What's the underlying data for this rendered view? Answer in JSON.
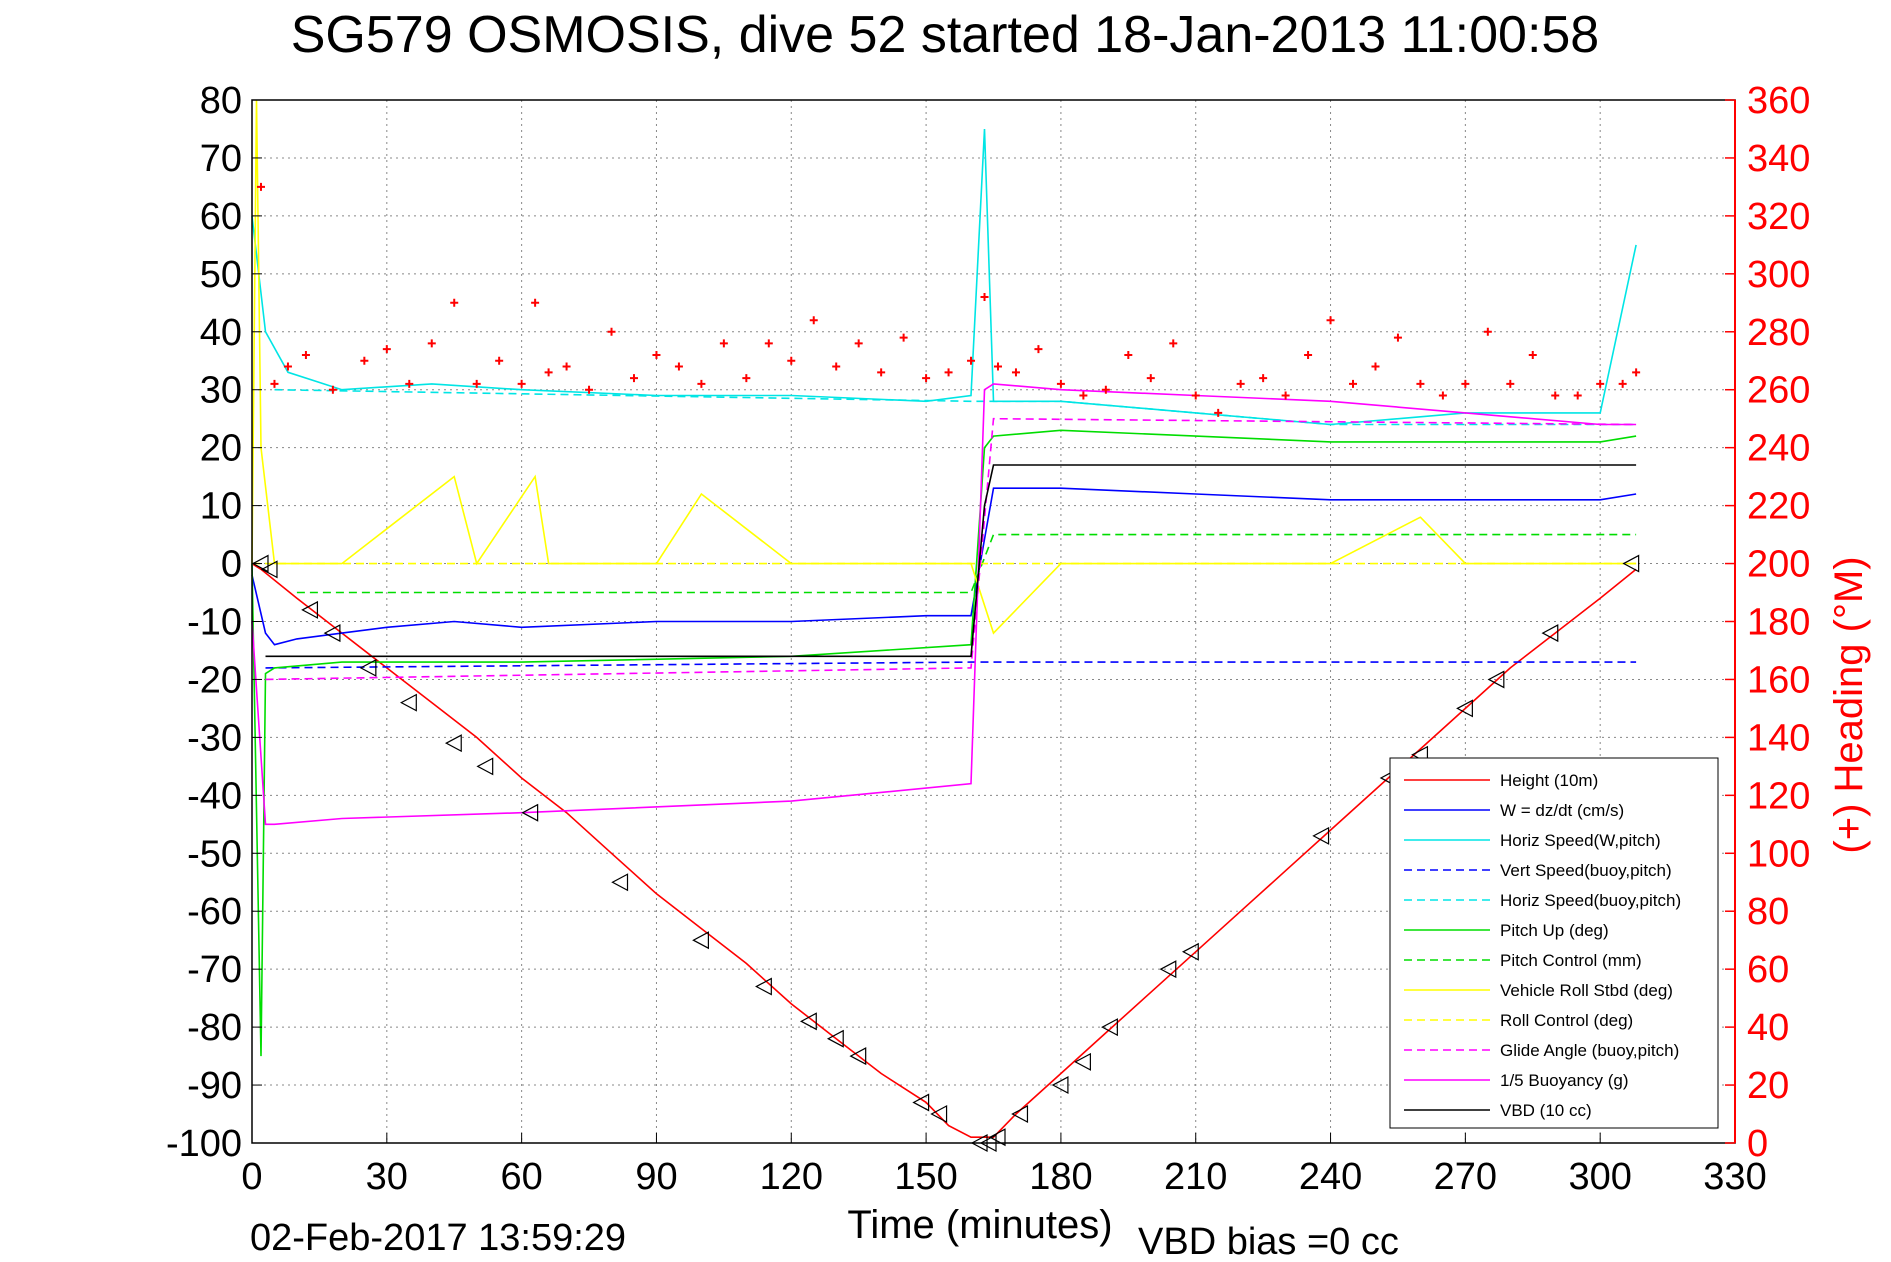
{
  "chart_data": {
    "type": "line",
    "title": "SG579 OSMOSIS, dive 52 started 18-Jan-2013 11:00:58",
    "xlabel": "Time (minutes)",
    "ylabel": "",
    "ylabel_right": "(+) Heading (°M)",
    "xlim": [
      0,
      330
    ],
    "ylim": [
      -100,
      80
    ],
    "ylim_right": [
      0,
      360
    ],
    "x_ticks": [
      "0",
      "30",
      "60",
      "90",
      "120",
      "150",
      "180",
      "210",
      "240",
      "270",
      "300",
      "330"
    ],
    "y_ticks": [
      "80",
      "70",
      "60",
      "50",
      "40",
      "30",
      "20",
      "10",
      "0",
      "-10",
      "-20",
      "-30",
      "-40",
      "-50",
      "-60",
      "-70",
      "-80",
      "-90",
      "-100"
    ],
    "y_right_ticks": [
      "360",
      "340",
      "320",
      "300",
      "280",
      "260",
      "240",
      "220",
      "200",
      "180",
      "160",
      "140",
      "120",
      "100",
      "80",
      "60",
      "40",
      "20",
      "0"
    ],
    "grid": true,
    "legend_placement": "lower-right",
    "footer_left": "02-Feb-2017 13:59:29",
    "footer_right": "VBD bias =0 cc",
    "series": [
      {
        "name": "Height (10m)",
        "color": "#ff0000",
        "style": "solid",
        "x": [
          0,
          2,
          10,
          20,
          30,
          40,
          50,
          60,
          70,
          80,
          90,
          100,
          110,
          120,
          130,
          140,
          150,
          155,
          160,
          165,
          170,
          180,
          190,
          200,
          210,
          220,
          230,
          240,
          250,
          260,
          270,
          280,
          290,
          300,
          308
        ],
        "y": [
          0,
          -1,
          -6,
          -12,
          -18,
          -24,
          -30,
          -37,
          -43,
          -50,
          -57,
          -63,
          -69,
          -76,
          -82,
          -88,
          -93,
          -97,
          -99,
          -99,
          -95,
          -88,
          -81,
          -74,
          -67,
          -60,
          -53,
          -46,
          -39,
          -32,
          -25,
          -18,
          -12,
          -6,
          -1
        ]
      },
      {
        "name": "W = dz/dt (cm/s)",
        "color": "#0000ff",
        "style": "solid",
        "x": [
          0,
          3,
          5,
          10,
          20,
          30,
          45,
          60,
          90,
          120,
          150,
          160,
          165,
          180,
          210,
          240,
          270,
          300,
          308
        ],
        "y": [
          -2,
          -12,
          -14,
          -13,
          -12,
          -11,
          -10,
          -11,
          -10,
          -10,
          -9,
          -9,
          13,
          13,
          12,
          11,
          11,
          11,
          12
        ]
      },
      {
        "name": "Horiz Speed(W,pitch)",
        "color": "#00e5e5",
        "style": "solid",
        "x": [
          0,
          3,
          8,
          20,
          40,
          60,
          90,
          120,
          150,
          160,
          163,
          165,
          180,
          210,
          240,
          270,
          300,
          308
        ],
        "y": [
          60,
          40,
          33,
          30,
          31,
          30,
          29,
          29,
          28,
          29,
          75,
          28,
          28,
          26,
          24,
          26,
          26,
          55
        ]
      },
      {
        "name": "Vert Speed(buoy,pitch)",
        "color": "#0000ff",
        "style": "dashed",
        "x": [
          3,
          160,
          163,
          308
        ],
        "y": [
          -18,
          -17,
          -17,
          -17
        ]
      },
      {
        "name": "Horiz Speed(buoy,pitch)",
        "color": "#00e5e5",
        "style": "dashed",
        "x": [
          5,
          160,
          165,
          180,
          210,
          240,
          270,
          308
        ],
        "y": [
          30,
          28,
          28,
          28,
          26,
          24,
          24,
          24
        ]
      },
      {
        "name": "Pitch Up (deg)",
        "color": "#00dd00",
        "style": "solid",
        "x": [
          0,
          2,
          3,
          5,
          20,
          60,
          120,
          160,
          163,
          165,
          180,
          210,
          240,
          270,
          300,
          308
        ],
        "y": [
          0,
          -85,
          -19,
          -18,
          -17,
          -17,
          -16,
          -14,
          20,
          22,
          23,
          22,
          21,
          21,
          21,
          22
        ]
      },
      {
        "name": "Pitch Control (mm)",
        "color": "#00dd00",
        "style": "dashed",
        "x": [
          10,
          160,
          165,
          308
        ],
        "y": [
          -5,
          -5,
          5,
          5
        ]
      },
      {
        "name": "Vehicle Roll Stbd (deg)",
        "color": "#ffff00",
        "style": "solid",
        "x": [
          0,
          1,
          2,
          5,
          20,
          45,
          50,
          63,
          66,
          90,
          100,
          120,
          150,
          160,
          165,
          180,
          200,
          210,
          240,
          260,
          270,
          300,
          308
        ],
        "y": [
          0,
          80,
          20,
          0,
          0,
          15,
          0,
          15,
          0,
          0,
          12,
          0,
          0,
          0,
          -12,
          0,
          0,
          0,
          0,
          8,
          0,
          0,
          0
        ]
      },
      {
        "name": "Roll Control (deg)",
        "color": "#ffff00",
        "style": "dashed",
        "x": [
          0,
          160,
          165,
          308
        ],
        "y": [
          0,
          0,
          0,
          0
        ]
      },
      {
        "name": "Glide Angle (buoy,pitch)",
        "color": "#ff00ff",
        "style": "dashed",
        "x": [
          3,
          160,
          165,
          308
        ],
        "y": [
          -20,
          -18,
          25,
          24
        ]
      },
      {
        "name": "1/5 Buoyancy (g)",
        "color": "#ff00ff",
        "style": "solid",
        "x": [
          0,
          3,
          5,
          20,
          60,
          120,
          160,
          163,
          165,
          180,
          210,
          240,
          270,
          300,
          308
        ],
        "y": [
          -10,
          -45,
          -45,
          -44,
          -43,
          -41,
          -38,
          30,
          31,
          30,
          29,
          28,
          26,
          24,
          24
        ]
      },
      {
        "name": "VBD (10 cc)",
        "color": "#000000",
        "style": "solid",
        "x": [
          3,
          160,
          163,
          165,
          308
        ],
        "y": [
          -16,
          -16,
          10,
          17,
          17
        ]
      }
    ],
    "heading_points": {
      "name": "(+) Heading (°M)",
      "color": "#ff0000",
      "x": [
        2,
        5,
        8,
        12,
        18,
        25,
        30,
        35,
        40,
        45,
        50,
        55,
        60,
        63,
        66,
        70,
        75,
        80,
        85,
        90,
        95,
        100,
        105,
        110,
        115,
        120,
        125,
        130,
        135,
        140,
        145,
        150,
        155,
        160,
        163,
        166,
        170,
        175,
        180,
        185,
        190,
        195,
        200,
        205,
        210,
        215,
        220,
        225,
        230,
        235,
        240,
        245,
        250,
        255,
        260,
        265,
        270,
        275,
        280,
        285,
        290,
        295,
        300,
        305,
        308
      ],
      "y": [
        330,
        262,
        268,
        272,
        260,
        270,
        274,
        262,
        276,
        290,
        262,
        270,
        262,
        290,
        266,
        268,
        260,
        280,
        264,
        272,
        268,
        262,
        276,
        264,
        276,
        270,
        284,
        268,
        276,
        266,
        278,
        264,
        266,
        270,
        292,
        268,
        266,
        274,
        262,
        258,
        260,
        272,
        264,
        276,
        258,
        252,
        262,
        264,
        258,
        272,
        284,
        262,
        268,
        278,
        262,
        258,
        262,
        280,
        262,
        272,
        258,
        258,
        262,
        262,
        266
      ]
    },
    "depth_markers": {
      "name": "",
      "color": "#000000",
      "x": [
        2,
        4,
        13,
        18,
        26,
        35,
        45,
        52,
        62,
        82,
        100,
        114,
        124,
        130,
        135,
        149,
        153,
        162,
        164,
        166,
        171,
        180,
        185,
        191,
        204,
        209,
        238,
        253,
        260,
        270,
        277,
        289,
        307
      ],
      "y": [
        0,
        -1,
        -8,
        -12,
        -18,
        -24,
        -31,
        -35,
        -43,
        -55,
        -65,
        -73,
        -79,
        -82,
        -85,
        -93,
        -95,
        -100,
        -100,
        -99,
        -95,
        -90,
        -86,
        -80,
        -70,
        -67,
        -47,
        -37,
        -33,
        -25,
        -20,
        -12,
        0
      ]
    }
  }
}
